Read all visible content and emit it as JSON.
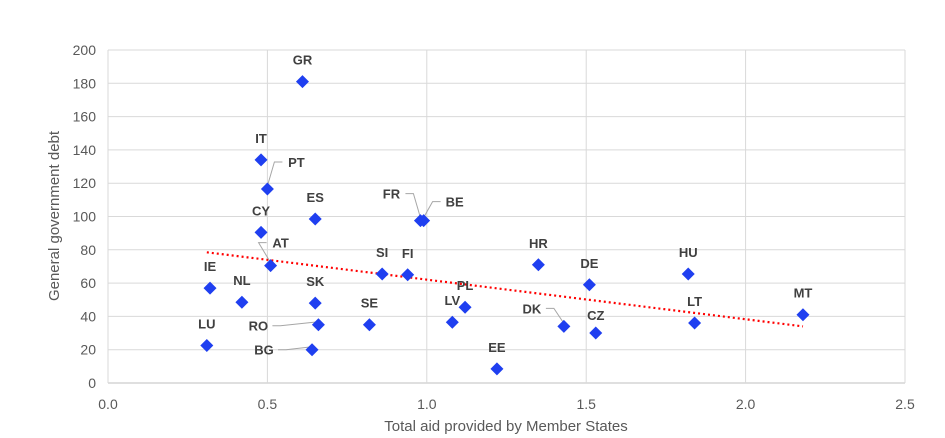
{
  "chart_data": {
    "type": "scatter",
    "title": "",
    "xlabel": "Total aid provided by Member States",
    "ylabel": "General government debt",
    "xlim": [
      0,
      2.5
    ],
    "ylim": [
      0,
      200
    ],
    "xticks": [
      "0.0",
      "0.5",
      "1.0",
      "1.5",
      "2.0",
      "2.5"
    ],
    "xtick_values": [
      0,
      0.5,
      1.0,
      1.5,
      2.0,
      2.5
    ],
    "yticks": [
      "0",
      "20",
      "40",
      "60",
      "80",
      "100",
      "120",
      "140",
      "160",
      "180",
      "200"
    ],
    "ytick_values": [
      0,
      20,
      40,
      60,
      80,
      100,
      120,
      140,
      160,
      180,
      200
    ],
    "grid": true,
    "marker_color": "#1f3ff0",
    "trendline_color": "#ff0000",
    "trendline": {
      "type": "linear",
      "x": [
        0.31,
        2.18
      ],
      "y": [
        78.5,
        34
      ]
    },
    "points": [
      {
        "label": "GR",
        "x": 0.61,
        "y": 181
      },
      {
        "label": "IT",
        "x": 0.48,
        "y": 134
      },
      {
        "label": "PT",
        "x": 0.5,
        "y": 116.5
      },
      {
        "label": "ES",
        "x": 0.65,
        "y": 98.5
      },
      {
        "label": "CY",
        "x": 0.48,
        "y": 90.5
      },
      {
        "label": "AT",
        "x": 0.51,
        "y": 70.5
      },
      {
        "label": "IE",
        "x": 0.32,
        "y": 57
      },
      {
        "label": "NL",
        "x": 0.42,
        "y": 48.5
      },
      {
        "label": "SK",
        "x": 0.65,
        "y": 48
      },
      {
        "label": "RO",
        "x": 0.66,
        "y": 35
      },
      {
        "label": "LU",
        "x": 0.31,
        "y": 22.5
      },
      {
        "label": "BG",
        "x": 0.64,
        "y": 20
      },
      {
        "label": "SE",
        "x": 0.82,
        "y": 35
      },
      {
        "label": "SI",
        "x": 0.86,
        "y": 65.5
      },
      {
        "label": "FI",
        "x": 0.94,
        "y": 65
      },
      {
        "label": "FR",
        "x": 0.98,
        "y": 97.5
      },
      {
        "label": "BE",
        "x": 0.99,
        "y": 97.5
      },
      {
        "label": "LV",
        "x": 1.08,
        "y": 36.5
      },
      {
        "label": "PL",
        "x": 1.12,
        "y": 45.5
      },
      {
        "label": "EE",
        "x": 1.22,
        "y": 8.5
      },
      {
        "label": "HR",
        "x": 1.35,
        "y": 71
      },
      {
        "label": "DK",
        "x": 1.43,
        "y": 34
      },
      {
        "label": "DE",
        "x": 1.51,
        "y": 59
      },
      {
        "label": "CZ",
        "x": 1.53,
        "y": 30
      },
      {
        "label": "HU",
        "x": 1.82,
        "y": 65.5
      },
      {
        "label": "LT",
        "x": 1.84,
        "y": 36
      },
      {
        "label": "MT",
        "x": 2.18,
        "y": 41
      }
    ]
  }
}
